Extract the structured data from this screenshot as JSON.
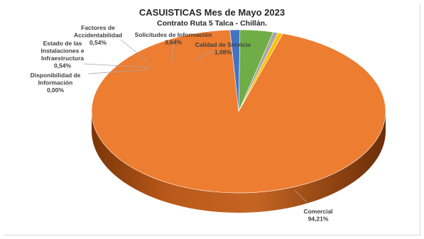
{
  "chart_data": {
    "type": "pie",
    "title": "CASUISTICAS Mes de Mayo 2023",
    "subtitle": "Contrato Ruta 5 Talca - Chillán.",
    "slices": [
      {
        "name": "Comercial",
        "value": 94.21,
        "label": "94,21%",
        "color": "#ED7D31"
      },
      {
        "name": "Disponibilidad de Información",
        "value": 0.0,
        "label": "0,00%",
        "color": "#FFC000"
      },
      {
        "name": "Estado de las Instalaciones e Infraestructura",
        "value": 0.54,
        "label": "0,54%",
        "color": "#FFC000"
      },
      {
        "name": "Factores de Accidentabilidad",
        "value": 0.54,
        "label": "0,54%",
        "color": "#A5A5A5"
      },
      {
        "name": "Solicitudes de Información",
        "value": 3.64,
        "label": "3,64%",
        "color": "#70AD47"
      },
      {
        "name": "Calidad de Servicio",
        "value": 1.08,
        "label": "1,08%",
        "color": "#4472C4"
      }
    ]
  },
  "labels": {
    "comercial": [
      "Comercial",
      "94,21%"
    ],
    "disponibilidad": [
      "Disponibilidad de",
      "Información",
      "0,00%"
    ],
    "estado": [
      "Estado de las",
      "Instalaciones e",
      "Infraestructura",
      "0,54%"
    ],
    "factores": [
      "Factores de",
      "Accidentabilidad",
      "0,54%"
    ],
    "solicitudes": [
      "Solicitudes de Información",
      "3,64%"
    ],
    "calidad": [
      "Calidad de Servicio",
      "1,08%"
    ]
  }
}
